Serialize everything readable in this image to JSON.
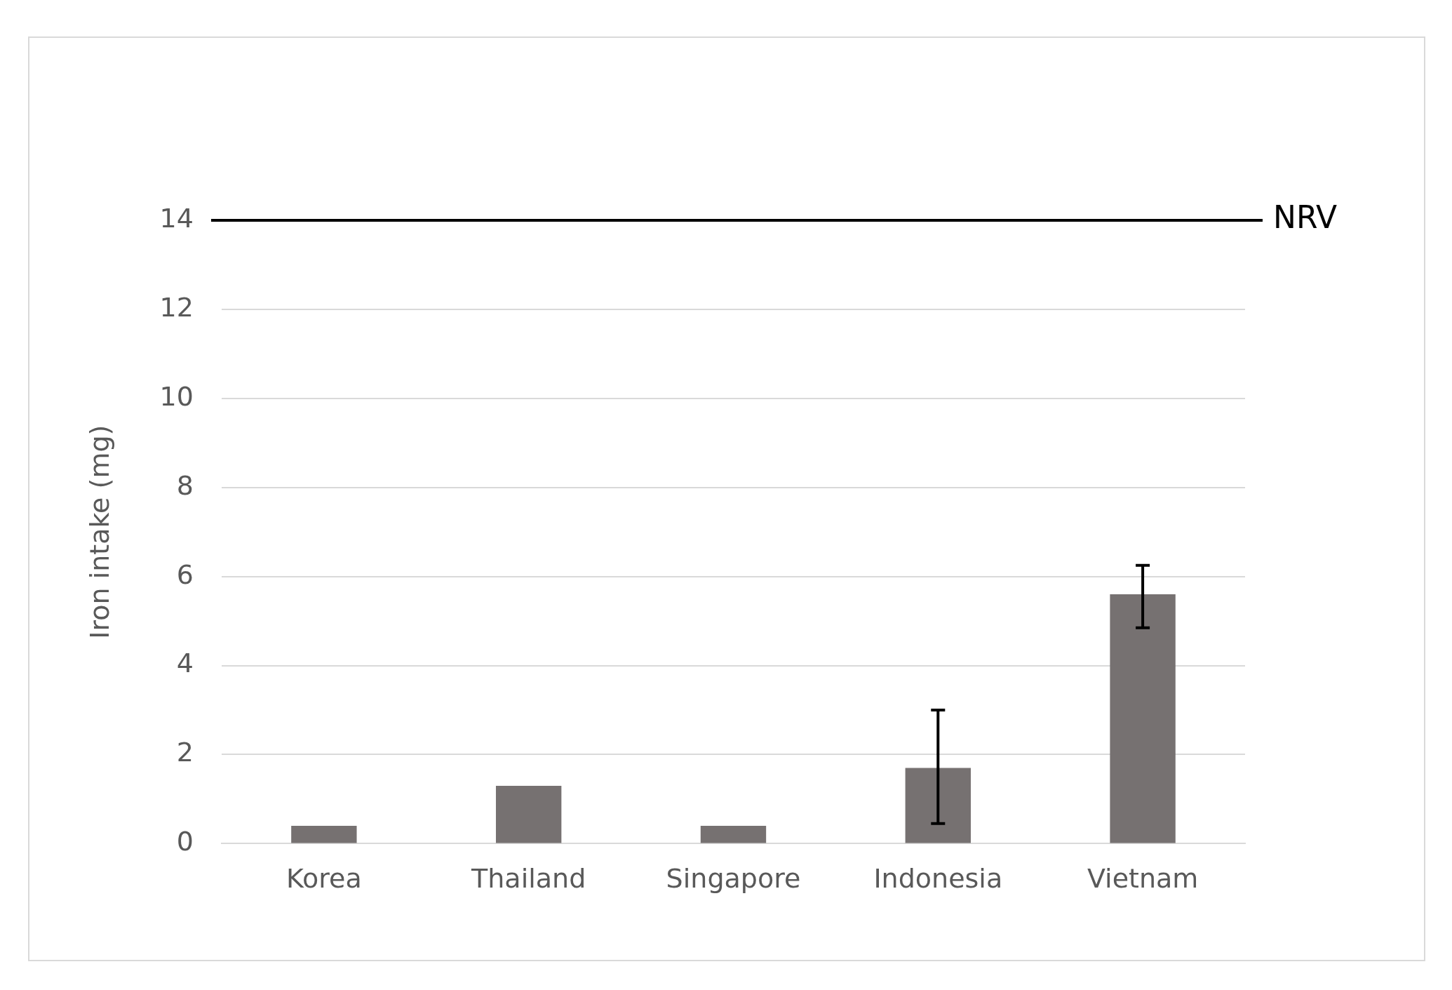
{
  "chart_data": {
    "type": "bar",
    "ylabel": "Iron intake (mg)",
    "categories": [
      "Korea",
      "Thailand",
      "Singapore",
      "Indonesia",
      "Vietnam"
    ],
    "values": [
      0.4,
      1.3,
      0.4,
      1.7,
      5.6
    ],
    "errors": [
      null,
      null,
      null,
      [
        0.45,
        3.0
      ],
      [
        4.85,
        6.25
      ]
    ],
    "color": "#767171",
    "ylim": [
      0,
      14
    ],
    "yticks": [
      0,
      2,
      4,
      6,
      8,
      10,
      12,
      14
    ],
    "grid": "y",
    "ref_lines": [
      {
        "axis": "y",
        "value": 14,
        "label": "NRV",
        "color": "#000000"
      }
    ]
  }
}
